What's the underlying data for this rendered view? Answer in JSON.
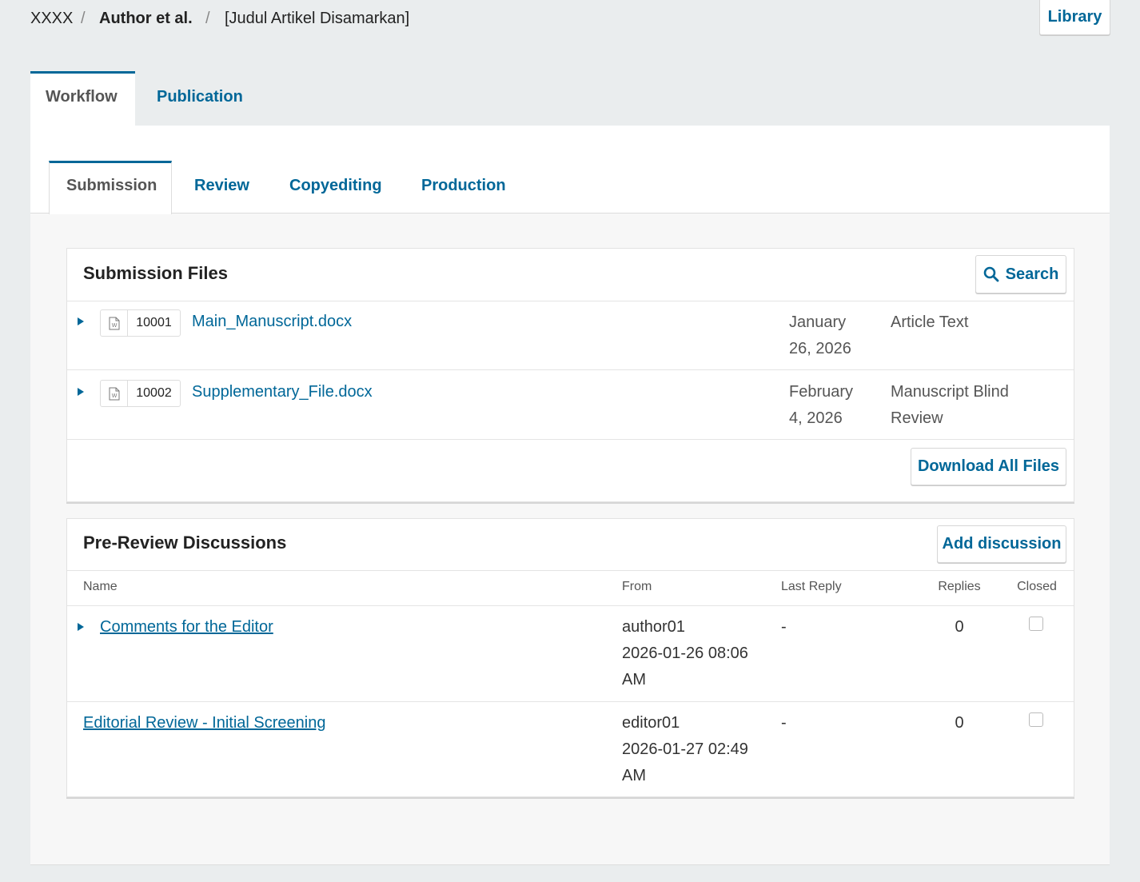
{
  "breadcrumb": {
    "items": [
      "XXXX",
      "Author et al.",
      "[Judul Artikel Disamarkan]"
    ],
    "separator": "/",
    "library": "Library"
  },
  "tabs": [
    "Workflow",
    "Publication"
  ],
  "subtabs": [
    "Submission",
    "Review",
    "Copyediting",
    "Production"
  ],
  "files": {
    "title": "Submission Files",
    "search": "Search",
    "rows": [
      {
        "id": "10001",
        "name": "Main_Manuscript.docx",
        "date": "January 26, 2026",
        "type": "Article Text"
      },
      {
        "id": "10002",
        "name": "Supplementary_File.docx",
        "date": "February 4, 2026",
        "type": "Manuscript Blind Review"
      }
    ],
    "download": "Download All Files"
  },
  "discussions": {
    "title": "Pre-Review Discussions",
    "add": "Add discussion",
    "columns": [
      "Name",
      "From",
      "Last Reply",
      "Replies",
      "Closed"
    ],
    "rows": [
      {
        "name": "Comments for the Editor",
        "from": "author01",
        "date": "2026-01-26 08:06 AM",
        "last_reply": "-",
        "replies": 0
      },
      {
        "name": "Editorial Review - Initial Screening",
        "from": "editor01",
        "date": "2026-01-27 02:49 AM",
        "last_reply": "-",
        "replies": 0
      }
    ]
  }
}
